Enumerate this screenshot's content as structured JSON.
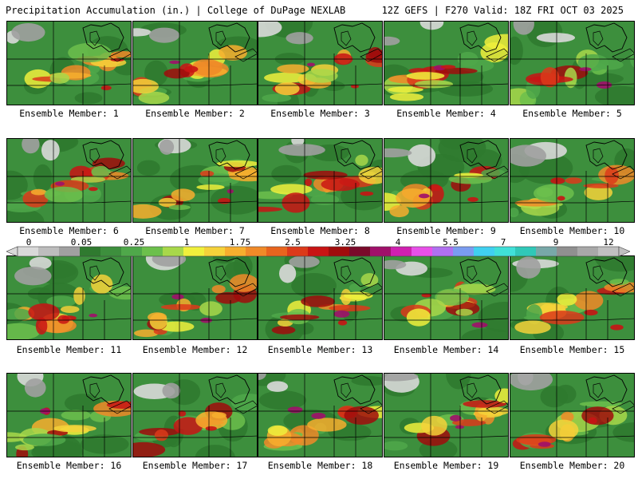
{
  "header": {
    "title": "Precipitation Accumulation (in.) | College of DuPage NEXLAB",
    "run_info": "12Z GEFS | F270 Valid: 18Z FRI OCT 03 2025"
  },
  "members": [
    {
      "label": "Ensemble Member: 1"
    },
    {
      "label": "Ensemble Member: 2"
    },
    {
      "label": "Ensemble Member: 3"
    },
    {
      "label": "Ensemble Member: 4"
    },
    {
      "label": "Ensemble Member: 5"
    },
    {
      "label": "Ensemble Member: 6"
    },
    {
      "label": "Ensemble Member: 7"
    },
    {
      "label": "Ensemble Member: 8"
    },
    {
      "label": "Ensemble Member: 9"
    },
    {
      "label": "Ensemble Member: 10"
    },
    {
      "label": "Ensemble Member: 11"
    },
    {
      "label": "Ensemble Member: 12"
    },
    {
      "label": "Ensemble Member: 13"
    },
    {
      "label": "Ensemble Member: 14"
    },
    {
      "label": "Ensemble Member: 15"
    },
    {
      "label": "Ensemble Member: 16"
    },
    {
      "label": "Ensemble Member: 17"
    },
    {
      "label": "Ensemble Member: 18"
    },
    {
      "label": "Ensemble Member: 19"
    },
    {
      "label": "Ensemble Member: 20"
    }
  ],
  "colorbar": {
    "tick_labels": [
      "0",
      "0.05",
      "0.25",
      "1",
      "1.75",
      "2.5",
      "3.25",
      "4",
      "5.5",
      "7",
      "9",
      "12"
    ],
    "colors": [
      "#d9d9d9",
      "#bdbdbd",
      "#a0a0a0",
      "#2f7a2f",
      "#3d8f3d",
      "#4fa84a",
      "#6cc04c",
      "#a8d84a",
      "#f0f03c",
      "#f5d23a",
      "#f7ae2e",
      "#f08a28",
      "#e8641e",
      "#dc3a1a",
      "#c81414",
      "#a00c0c",
      "#7a0a2a",
      "#a0106a",
      "#d020b0",
      "#e850e8",
      "#b070f0",
      "#7a9cf0",
      "#40d0f0",
      "#40e0d8",
      "#30c8b8",
      "#78a8a8",
      "#909090",
      "#a8a8a8",
      "#c0c0c0"
    ]
  }
}
